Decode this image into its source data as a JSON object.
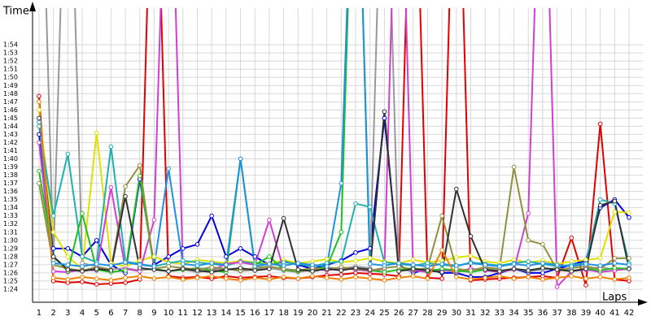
{
  "chart_data": {
    "type": "line",
    "y_label": "Time",
    "x_label": "Laps",
    "x": [
      1,
      2,
      3,
      4,
      5,
      6,
      7,
      8,
      9,
      10,
      11,
      12,
      13,
      14,
      15,
      16,
      17,
      18,
      19,
      20,
      21,
      22,
      23,
      24,
      25,
      26,
      27,
      28,
      29,
      30,
      31,
      32,
      33,
      34,
      35,
      36,
      37,
      38,
      39,
      40,
      41,
      42
    ],
    "xlim": [
      0.55,
      42.96
    ],
    "xticks": [
      1,
      2,
      3,
      4,
      5,
      6,
      7,
      8,
      9,
      10,
      11,
      12,
      13,
      14,
      15,
      16,
      17,
      18,
      19,
      20,
      21,
      22,
      23,
      24,
      25,
      26,
      27,
      28,
      29,
      30,
      31,
      32,
      33,
      34,
      35,
      36,
      37,
      38,
      39,
      40,
      41,
      42
    ],
    "ylim": [
      82.4,
      118.5
    ],
    "yticks": [
      {
        "value": 84,
        "label": "1:24"
      },
      {
        "value": 85,
        "label": "1:25"
      },
      {
        "value": 86,
        "label": "1:26"
      },
      {
        "value": 87,
        "label": "1:27"
      },
      {
        "value": 88,
        "label": "1:28"
      },
      {
        "value": 89,
        "label": "1:29"
      },
      {
        "value": 90,
        "label": "1:30"
      },
      {
        "value": 91,
        "label": "1:31"
      },
      {
        "value": 92,
        "label": "1:32"
      },
      {
        "value": 93,
        "label": "1:33"
      },
      {
        "value": 94,
        "label": "1:34"
      },
      {
        "value": 95,
        "label": "1:35"
      },
      {
        "value": 96,
        "label": "1:36"
      },
      {
        "value": 97,
        "label": "1:37"
      },
      {
        "value": 98,
        "label": "1:38"
      },
      {
        "value": 99,
        "label": "1:39"
      },
      {
        "value": 100,
        "label": "1:40"
      },
      {
        "value": 101,
        "label": "1:41"
      },
      {
        "value": 102,
        "label": "1:42"
      },
      {
        "value": 103,
        "label": "1:43"
      },
      {
        "value": 104,
        "label": "1:44"
      },
      {
        "value": 105,
        "label": "1:45"
      },
      {
        "value": 106,
        "label": "1:46"
      },
      {
        "value": 107,
        "label": "1:47"
      },
      {
        "value": 108,
        "label": "1:48"
      },
      {
        "value": 109,
        "label": "1:49"
      },
      {
        "value": 110,
        "label": "1:50"
      },
      {
        "value": 111,
        "label": "1:51"
      },
      {
        "value": 112,
        "label": "1:52"
      },
      {
        "value": 113,
        "label": "1:53"
      },
      {
        "value": 114,
        "label": "1:54"
      }
    ],
    "grid": true,
    "series": [
      {
        "color": "#e00000",
        "values": [
          107.7,
          85,
          84.8,
          84.9,
          84.6,
          84.7,
          84.8,
          85.2,
          150,
          85.6,
          85.4,
          85.5,
          85.3,
          85.6,
          85.4,
          85.5,
          85.6,
          85.4,
          85.3,
          85.5,
          85.7,
          85.8,
          86,
          85.9,
          85.8,
          85.6,
          150,
          85.4,
          85.3,
          150,
          85.1,
          85.2,
          85.3,
          85.4,
          85.5,
          85.6,
          85.4,
          90.3,
          84.5,
          104.3,
          85.2,
          85
        ]
      },
      {
        "color": "#0000e0",
        "values": [
          103,
          89,
          89,
          88,
          90,
          87,
          86,
          97.5,
          87,
          88,
          89,
          89.5,
          93,
          88,
          89,
          88,
          87,
          87.5,
          87,
          86.5,
          87,
          87.5,
          88.5,
          89,
          105,
          87,
          86,
          86.5,
          86,
          86,
          85.5,
          85.5,
          86,
          86.5,
          86,
          86,
          86.5,
          87,
          87.5,
          94,
          95,
          92.8
        ]
      },
      {
        "color": "#999999",
        "values": [
          150,
          87.5,
          150,
          87.2,
          86.8,
          86.4,
          86.6,
          86.3,
          86.5,
          86.2,
          86.4,
          86.1,
          86.3,
          86.5,
          86.2,
          86.4,
          86.6,
          86.3,
          86.1,
          86.4,
          86.7,
          86.5,
          86.8,
          86.6,
          150,
          86.4,
          86.2,
          86.5,
          86.3,
          86.1,
          86.4,
          86.6,
          86.3,
          86.5,
          86.2,
          86.4,
          86.6,
          86.3,
          86.5,
          86.7,
          86.4,
          86.6
        ]
      },
      {
        "color": "#e0e000",
        "values": [
          106,
          91,
          88,
          86.5,
          103.2,
          87.2,
          86.8,
          87.5,
          88,
          87.3,
          87.1,
          87.6,
          87.4,
          87.2,
          87.5,
          87.3,
          87.1,
          87.6,
          87.2,
          87.4,
          87.7,
          87.3,
          87.5,
          87.8,
          87.4,
          87.2,
          87.6,
          87.3,
          87.5,
          87.9,
          88.1,
          87.4,
          87.2,
          87.6,
          87.3,
          87.5,
          87.1,
          87.4,
          87.6,
          87.8,
          93.5,
          93.4
        ]
      },
      {
        "color": "#20b0b0",
        "values": [
          104,
          93,
          100.6,
          88,
          87.3,
          101.5,
          87.4,
          87.1,
          86.8,
          87.2,
          87.5,
          87.3,
          87.1,
          86.9,
          87.4,
          87.2,
          87,
          87.3,
          87.1,
          86.8,
          87.2,
          87.4,
          94.5,
          94.1,
          87.3,
          87.1,
          86.9,
          87.2,
          87,
          86.8,
          87.3,
          87.1,
          86.9,
          87.2,
          87.4,
          87.1,
          86.8,
          87,
          87.2,
          95,
          94.5,
          87.2
        ]
      },
      {
        "color": "#d040d0",
        "values": [
          102,
          86.2,
          86.1,
          86.4,
          86.3,
          96.5,
          86.5,
          86.2,
          92.5,
          150,
          86.4,
          86.6,
          86.3,
          87.1,
          87.3,
          87,
          92.5,
          86.4,
          86.2,
          86.5,
          86.3,
          86.6,
          86.4,
          86.2,
          86.5,
          150,
          86.3,
          86.1,
          86.4,
          86.2,
          86.5,
          86.3,
          86.1,
          86.4,
          93.3,
          150,
          84.3,
          86.2,
          86.4,
          86.1,
          86.3,
          86.5
        ]
      },
      {
        "color": "#20c020",
        "values": [
          98.5,
          88,
          86.2,
          93.3,
          86.4,
          86.1,
          86.3,
          97.9,
          86.5,
          86.2,
          86.4,
          86.6,
          86.3,
          86.1,
          100,
          87,
          88,
          86.4,
          86.2,
          86.5,
          86.7,
          91,
          150,
          86.3,
          86.1,
          86.4,
          86.6,
          86.2,
          86.5,
          86.3,
          86.1,
          86.4,
          86.2,
          86.5,
          86.3,
          86.6,
          86.4,
          86.2,
          86.5,
          86.3,
          86.6,
          86.5
        ]
      },
      {
        "color": "#909040",
        "values": [
          97,
          87,
          86.5,
          86.3,
          86.7,
          86.4,
          96.6,
          99.2,
          86.5,
          86.8,
          86.6,
          86.4,
          86.7,
          86.5,
          86.3,
          86.6,
          86.8,
          86.5,
          86.3,
          86.6,
          86.4,
          86.7,
          86.5,
          86.3,
          86.6,
          86.8,
          86.4,
          86.6,
          93,
          86.5,
          86.3,
          86.7,
          86.5,
          99,
          90,
          89.5,
          86.4,
          86.6,
          86.8,
          86.5,
          87.8,
          87.8
        ]
      },
      {
        "color": "#303030",
        "values": [
          105,
          88,
          86.4,
          86.2,
          86.5,
          86.3,
          95.4,
          86.6,
          86.4,
          86.2,
          86.5,
          86.3,
          86.1,
          86.4,
          86.6,
          86.3,
          86.5,
          92.7,
          86.4,
          86.2,
          86.5,
          86.3,
          86.6,
          86.4,
          105.8,
          86.2,
          86.5,
          86.3,
          86.1,
          96.3,
          90.5,
          86.4,
          86.2,
          86.5,
          86.3,
          86.6,
          86.4,
          86.2,
          86.5,
          94.3,
          94.8,
          86.5
        ]
      },
      {
        "color": "#2090e0",
        "values": [
          104.5,
          87.2,
          87,
          86.8,
          87.1,
          86.9,
          87.3,
          87,
          86.8,
          98.8,
          87.1,
          86.9,
          87.2,
          87,
          100,
          86.8,
          87.1,
          86.9,
          87.2,
          87,
          86.8,
          97,
          150,
          87.1,
          86.9,
          87.2,
          87,
          86.8,
          87.1,
          86.9,
          87.2,
          87,
          86.8,
          87.1,
          86.9,
          87.2,
          87,
          86.8,
          87.1,
          86.9,
          87.2,
          87
        ]
      },
      {
        "color": "#f08000",
        "values": [
          107,
          85.4,
          85.2,
          85.5,
          85.3,
          85.1,
          85.4,
          85.6,
          85.3,
          85.5,
          85.2,
          85.4,
          85.6,
          85.3,
          85.1,
          85.4,
          85.2,
          85.5,
          85.3,
          85.6,
          85.4,
          85.2,
          85.5,
          85.3,
          85.1,
          85.4,
          85.6,
          85.3,
          88.8,
          85.5,
          85.2,
          85.4,
          85.6,
          85.3,
          85.5,
          85.2,
          85.4,
          85.6,
          85.3,
          85.5,
          85.2,
          85.4
        ]
      }
    ]
  }
}
